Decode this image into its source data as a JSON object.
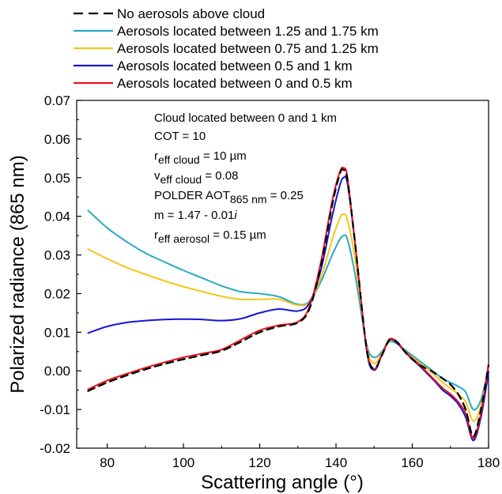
{
  "chart_data": {
    "type": "line",
    "xlabel": "Scattering angle (°)",
    "ylabel": "Polarized radiance (865 nm)",
    "xlim": [
      72,
      180
    ],
    "ylim": [
      -0.02,
      0.07
    ],
    "xticks": [
      80,
      100,
      120,
      140,
      160,
      180
    ],
    "yticks": [
      -0.02,
      -0.01,
      0.0,
      0.01,
      0.02,
      0.03,
      0.04,
      0.05,
      0.06,
      0.07
    ],
    "ytick_labels": [
      "-0.02",
      "-0.01",
      "0.00",
      "0.01",
      "0.02",
      "0.03",
      "0.04",
      "0.05",
      "0.06",
      "0.07"
    ],
    "xtick_labels": [
      "80",
      "100",
      "120",
      "140",
      "160",
      "180"
    ],
    "legend_position": "top-left, outside above plot",
    "annotation": {
      "line1": "Cloud located between 0 and 1 km",
      "line2": "COT = 10",
      "line3_main": "r",
      "line3_sub": "eff cloud",
      "line3_rest": " = 10 µm",
      "line4_main": "v",
      "line4_sub": "eff cloud",
      "line4_rest": " = 0.08",
      "line5_main": "POLDER AOT",
      "line5_sub": "865 nm",
      "line5_rest": " = 0.25",
      "line6_main": "m = 1.47 - 0.01",
      "line6_italic": "i",
      "line7_main": "r",
      "line7_sub": "eff aerosol",
      "line7_rest": " = 0.15 µm"
    },
    "series": [
      {
        "name": "No aerosols above cloud",
        "color": "#000000",
        "dash": "dashed",
        "x": [
          75,
          80,
          85,
          90,
          95,
          100,
          105,
          110,
          115,
          120,
          125,
          130,
          133,
          136,
          139,
          141,
          142,
          143,
          145,
          148,
          150,
          152,
          154,
          156,
          158,
          160,
          162,
          164,
          165,
          168,
          170,
          172,
          174,
          176,
          178,
          180
        ],
        "y": [
          -0.0052,
          -0.003,
          -0.0012,
          0.0004,
          0.0018,
          0.003,
          0.0041,
          0.0052,
          0.0075,
          0.01,
          0.0115,
          0.0125,
          0.016,
          0.027,
          0.043,
          0.051,
          0.052,
          0.0495,
          0.033,
          0.006,
          0.0005,
          0.004,
          0.008,
          0.0075,
          0.005,
          0.003,
          0.0015,
          0.0005,
          0.0,
          -0.002,
          -0.0035,
          -0.006,
          -0.01,
          -0.017,
          -0.01,
          0.0015
        ]
      },
      {
        "name": "Aerosols located between 1.25 and 1.75 km",
        "color": "#2AA8C4",
        "dash": "solid",
        "x": [
          75,
          80,
          85,
          90,
          95,
          100,
          105,
          110,
          115,
          120,
          125,
          130,
          133,
          136,
          139,
          141,
          142,
          143,
          145,
          148,
          150,
          152,
          154,
          156,
          158,
          160,
          162,
          164,
          166,
          168,
          170,
          172,
          174,
          176,
          178,
          180
        ],
        "y": [
          0.0415,
          0.037,
          0.0335,
          0.0305,
          0.0282,
          0.026,
          0.024,
          0.022,
          0.0205,
          0.02,
          0.0192,
          0.0172,
          0.018,
          0.023,
          0.03,
          0.034,
          0.035,
          0.034,
          0.025,
          0.007,
          0.0035,
          0.005,
          0.0075,
          0.007,
          0.0055,
          0.004,
          0.0025,
          0.001,
          -0.0005,
          -0.002,
          -0.003,
          -0.004,
          -0.0055,
          -0.01,
          -0.0075,
          0.001
        ]
      },
      {
        "name": "Aerosols located between 0.75 and 1.25 km",
        "color": "#F5C518",
        "dash": "solid",
        "x": [
          75,
          80,
          85,
          90,
          95,
          100,
          105,
          110,
          115,
          120,
          125,
          130,
          133,
          136,
          139,
          141,
          142,
          143,
          145,
          148,
          150,
          152,
          154,
          156,
          158,
          160,
          162,
          164,
          166,
          168,
          170,
          172,
          174,
          176,
          178,
          180
        ],
        "y": [
          0.0315,
          0.029,
          0.0268,
          0.025,
          0.0233,
          0.0218,
          0.0205,
          0.0193,
          0.0185,
          0.0185,
          0.0185,
          0.017,
          0.0178,
          0.024,
          0.034,
          0.0395,
          0.0405,
          0.039,
          0.029,
          0.0065,
          0.002,
          0.0045,
          0.0078,
          0.0072,
          0.0052,
          0.0035,
          0.002,
          0.0005,
          -0.0012,
          -0.003,
          -0.0045,
          -0.006,
          -0.008,
          -0.013,
          -0.009,
          0.0012
        ]
      },
      {
        "name": "Aerosols located between 0.5 and 1 km",
        "color": "#1515D6",
        "dash": "solid",
        "x": [
          75,
          80,
          85,
          90,
          95,
          100,
          105,
          110,
          115,
          120,
          125,
          130,
          133,
          136,
          139,
          141,
          142,
          143,
          145,
          148,
          150,
          152,
          154,
          156,
          158,
          160,
          162,
          164,
          166,
          168,
          170,
          172,
          174,
          176,
          178,
          180
        ],
        "y": [
          0.0098,
          0.0115,
          0.0125,
          0.013,
          0.0133,
          0.0134,
          0.0133,
          0.013,
          0.0135,
          0.015,
          0.016,
          0.0155,
          0.0175,
          0.026,
          0.04,
          0.048,
          0.05,
          0.0485,
          0.033,
          0.0055,
          0.0002,
          0.004,
          0.008,
          0.0072,
          0.005,
          0.003,
          0.0012,
          -0.0008,
          -0.0028,
          -0.005,
          -0.0065,
          -0.0085,
          -0.012,
          -0.018,
          -0.012,
          -0.0003
        ]
      },
      {
        "name": "Aerosols located between 0 and 0.5 km",
        "color": "#E8121B",
        "dash": "solid",
        "x": [
          75,
          80,
          85,
          90,
          95,
          100,
          105,
          110,
          115,
          120,
          125,
          130,
          133,
          136,
          139,
          141,
          142,
          143,
          145,
          148,
          150,
          152,
          154,
          156,
          158,
          160,
          162,
          164,
          166,
          168,
          170,
          172,
          174,
          176,
          178,
          180
        ],
        "y": [
          -0.0048,
          -0.0025,
          -0.0008,
          0.0008,
          0.0022,
          0.0035,
          0.0045,
          0.0055,
          0.008,
          0.0105,
          0.0118,
          0.0127,
          0.0165,
          0.028,
          0.044,
          0.0515,
          0.0525,
          0.05,
          0.033,
          0.006,
          0.0005,
          0.0042,
          0.0082,
          0.0074,
          0.0052,
          0.0032,
          0.0015,
          -0.0005,
          -0.0025,
          -0.0045,
          -0.006,
          -0.008,
          -0.011,
          -0.0175,
          -0.011,
          0.0018
        ]
      }
    ]
  }
}
